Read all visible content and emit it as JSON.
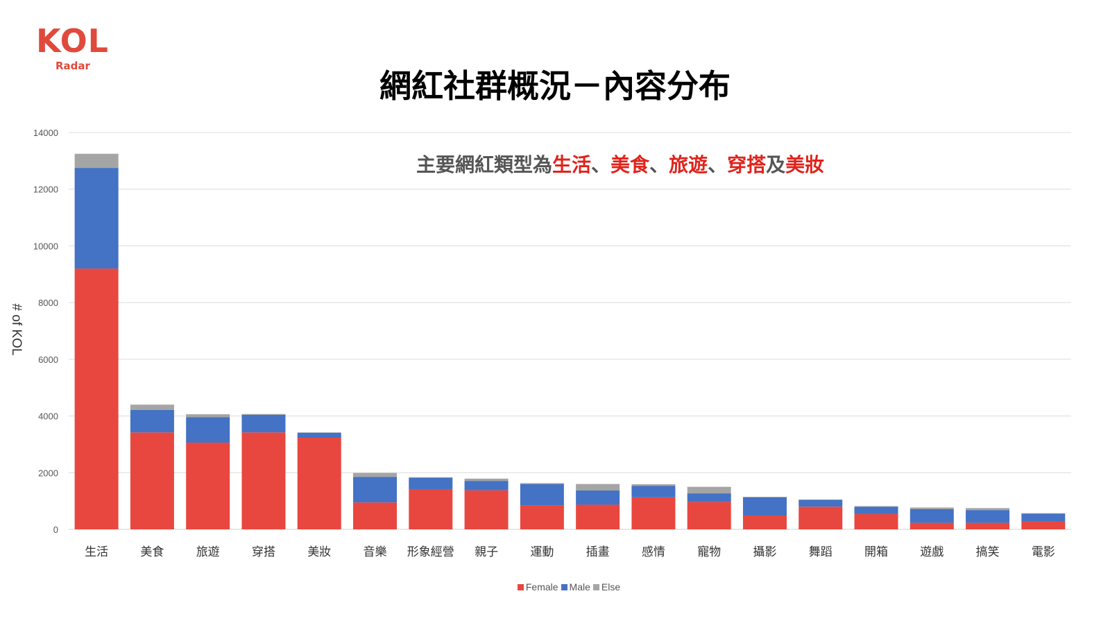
{
  "logo": {
    "main": "KOL",
    "sub": "Radar"
  },
  "title": "網紅社群概況－內容分布",
  "subtitle": {
    "prefix": "主要網紅類型為",
    "parts": [
      {
        "text": "生活",
        "highlight": true
      },
      {
        "text": "、",
        "highlight": false
      },
      {
        "text": "美食",
        "highlight": true
      },
      {
        "text": "、",
        "highlight": false
      },
      {
        "text": "旅遊",
        "highlight": true
      },
      {
        "text": "、",
        "highlight": false
      },
      {
        "text": "穿搭",
        "highlight": true
      },
      {
        "text": "及",
        "highlight": false
      },
      {
        "text": "美妝",
        "highlight": true
      }
    ]
  },
  "chart_data": {
    "type": "bar",
    "stacked": true,
    "categories": [
      "生活",
      "美食",
      "旅遊",
      "穿搭",
      "美妝",
      "音樂",
      "形象經營",
      "親子",
      "運動",
      "插畫",
      "感情",
      "寵物",
      "攝影",
      "舞蹈",
      "開箱",
      "遊戲",
      "搞笑",
      "電影"
    ],
    "series": [
      {
        "name": "Female",
        "color": "#e8473f",
        "values": [
          9200,
          3420,
          3060,
          3420,
          3230,
          950,
          1420,
          1380,
          840,
          870,
          1130,
          970,
          490,
          800,
          540,
          230,
          230,
          280
        ]
      },
      {
        "name": "Male",
        "color": "#4472c4",
        "values": [
          3550,
          790,
          900,
          620,
          180,
          900,
          400,
          330,
          760,
          500,
          400,
          300,
          640,
          240,
          260,
          480,
          450,
          270
        ]
      },
      {
        "name": "Else",
        "color": "#a5a5a5",
        "values": [
          500,
          190,
          100,
          30,
          10,
          140,
          20,
          80,
          30,
          230,
          60,
          230,
          20,
          10,
          20,
          60,
          70,
          20
        ]
      }
    ],
    "ylabel": "# of KOL",
    "ylim": [
      0,
      14000
    ],
    "yticks": [
      0,
      2000,
      4000,
      6000,
      8000,
      10000,
      12000,
      14000
    ],
    "grid": true,
    "legend_position": "bottom"
  }
}
